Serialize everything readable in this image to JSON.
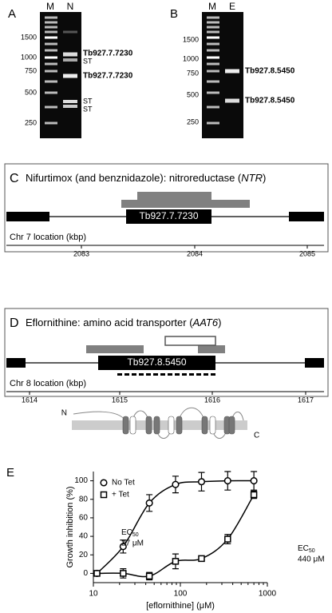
{
  "panel_a": {
    "label": "A",
    "lanes": [
      "M",
      "N"
    ],
    "ladder": [
      "1500",
      "1000",
      "750",
      "500",
      "250"
    ],
    "bands": [
      "Tb927.7.7230",
      "ST",
      "Tb927.7.7230",
      "ST",
      "ST"
    ]
  },
  "panel_b": {
    "label": "B",
    "lanes": [
      "M",
      "E"
    ],
    "ladder": [
      "1500",
      "1000",
      "750",
      "500",
      "250"
    ],
    "bands": [
      "Tb927.8.5450",
      "Tb927.8.5450"
    ]
  },
  "panel_c": {
    "label": "C",
    "title": "Nifurtimox (and benznidazole): nitroreductase (",
    "gene_symbol": "NTR",
    "title_end": ")",
    "gene": "Tb927.7.7230",
    "axis_label": "Chr 7 location (kbp)",
    "ticks": [
      "2083",
      "2084",
      "2085"
    ]
  },
  "panel_d": {
    "label": "D",
    "title": "Eflornithine: amino acid transporter (",
    "gene_symbol": "AAT6",
    "title_end": ")",
    "gene": "Tb927.8.5450",
    "axis_label": "Chr 8 location (kbp)",
    "ticks": [
      "1614",
      "1615",
      "1616",
      "1617"
    ],
    "n_term": "N",
    "c_term": "C"
  },
  "chart_data": {
    "type": "scatter",
    "label": "E",
    "x_label": "[eflornithine] (μM)",
    "y_label": "Growth inhibition (%)",
    "x": [
      11,
      22,
      44,
      88,
      175,
      350,
      700
    ],
    "log_x": true,
    "xlim": [
      10,
      1000
    ],
    "xticks": [
      10,
      100,
      1000
    ],
    "ylim": [
      -10,
      110
    ],
    "yticks": [
      0,
      20,
      40,
      60,
      80,
      100
    ],
    "series": [
      {
        "name": "No Tet",
        "marker": "circle",
        "color": "#000000",
        "values": [
          0,
          29,
          76,
          96,
          99,
          100,
          100
        ],
        "errors": [
          2,
          7,
          9,
          9,
          10,
          10,
          10
        ]
      },
      {
        "name": "+ Tet",
        "marker": "square",
        "color": "#000000",
        "values": [
          0,
          0,
          -3,
          13,
          16,
          37,
          85
        ],
        "errors": [
          2,
          5,
          4,
          8,
          2,
          5,
          4
        ]
      }
    ],
    "annotations": [
      {
        "text": "EC",
        "sub": "50",
        "value": "27 μM"
      },
      {
        "text": "EC",
        "sub": "50",
        "value": "440 μM"
      }
    ]
  }
}
